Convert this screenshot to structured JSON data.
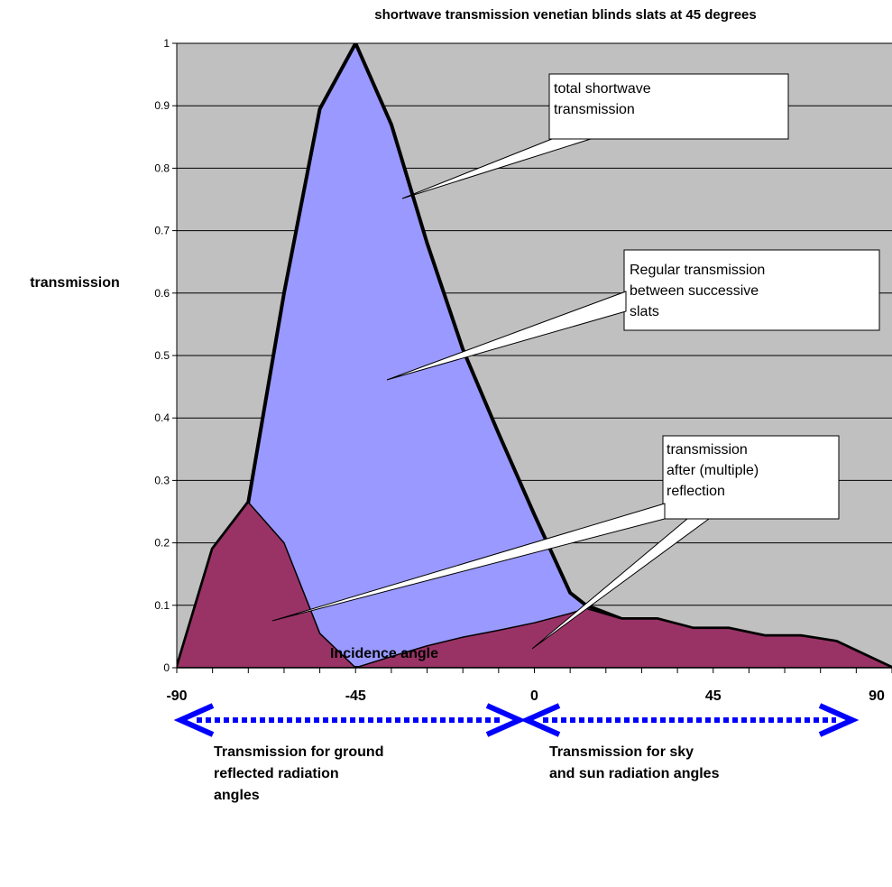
{
  "chart_data": {
    "type": "area",
    "title": "shortwave transmission venetian blinds slats at 45 degrees",
    "xlabel": "Incidence angle",
    "ylabel": "transmission",
    "xlim": [
      -90,
      90
    ],
    "ylim": [
      0,
      1
    ],
    "x_ticks": [
      "-90",
      "-45",
      "0",
      "45",
      "90"
    ],
    "y_ticks": [
      "0",
      "0.1",
      "0.2",
      "0.3",
      "0.4",
      "0.5",
      "0.6",
      "0.7",
      "0.8",
      "0.9",
      "1"
    ],
    "grid": "horizontal",
    "background_color": "#c0c0c0",
    "series": [
      {
        "role": "total",
        "color": "#9999ff",
        "x": [
          -90,
          -81,
          -72,
          -63,
          -54,
          -45,
          -36,
          -27,
          -18,
          -9,
          0,
          9,
          13,
          22,
          31,
          40,
          49,
          58,
          67,
          76,
          90
        ],
        "values": [
          0,
          0.19,
          0.265,
          0.6,
          0.895,
          1.0,
          0.87,
          0.68,
          0.51,
          0.375,
          0.245,
          0.12,
          0.1,
          0.078,
          0.078,
          0.063,
          0.063,
          0.051,
          0.051,
          0.042,
          0
        ]
      },
      {
        "role": "reflected",
        "color": "#993366",
        "x": [
          -90,
          -81,
          -72,
          -63,
          -54,
          -45,
          -36,
          -27,
          -18,
          -9,
          0,
          9,
          13,
          22,
          31,
          40,
          49,
          58,
          67,
          76,
          90
        ],
        "values": [
          0,
          0.19,
          0.265,
          0.2,
          0.055,
          0,
          0.018,
          0.035,
          0.049,
          0.06,
          0.072,
          0.087,
          0.095,
          0.078,
          0.078,
          0.063,
          0.063,
          0.051,
          0.051,
          0.042,
          0
        ]
      }
    ],
    "annotations": [
      {
        "lines": [
          "total shortwave",
          "transmission"
        ]
      },
      {
        "lines": [
          "Regular transmission",
          "between successive",
          "slats"
        ]
      },
      {
        "lines": [
          "transmission",
          "after (multiple)",
          "reflection"
        ]
      }
    ]
  },
  "regions": [
    {
      "lines": [
        "Transmission for ground",
        "reflected radiation",
        "angles"
      ]
    },
    {
      "lines": [
        "Transmission for sky",
        "and sun radiation angles"
      ]
    }
  ],
  "arrow_color": "#0000ff"
}
